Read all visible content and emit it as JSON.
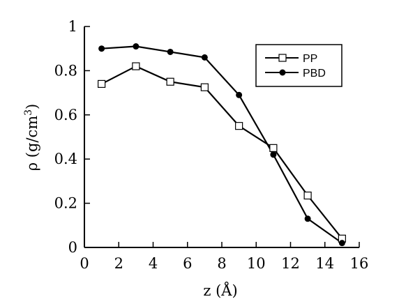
{
  "chart_data": {
    "type": "line",
    "title": "",
    "xlabel": "z (Å)",
    "ylabel_main": "ρ  (g/cm",
    "ylabel_sup": "3",
    "ylabel_close": ")",
    "xlim": [
      0,
      16
    ],
    "ylim": [
      0,
      1
    ],
    "x_ticks": [
      0,
      2,
      4,
      6,
      8,
      10,
      12,
      14,
      16
    ],
    "y_ticks": [
      0,
      0.2,
      0.4,
      0.6,
      0.8,
      1
    ],
    "x_tick_labels": [
      "0",
      "2",
      "4",
      "6",
      "8",
      "10",
      "12",
      "14",
      "16"
    ],
    "y_tick_labels": [
      "0",
      "0.2",
      "0.4",
      "0.6",
      "0.8",
      "1"
    ],
    "grid": false,
    "legend_position": "top-right",
    "x": [
      1,
      3,
      5,
      7,
      9,
      11,
      13,
      15
    ],
    "series": [
      {
        "name": "PP",
        "marker": "open-square",
        "color": "#000000",
        "values": [
          0.74,
          0.82,
          0.75,
          0.725,
          0.55,
          0.45,
          0.235,
          0.04
        ]
      },
      {
        "name": "PBD",
        "marker": "filled-circle",
        "color": "#000000",
        "values": [
          0.9,
          0.91,
          0.885,
          0.86,
          0.69,
          0.42,
          0.13,
          0.02
        ]
      }
    ]
  }
}
